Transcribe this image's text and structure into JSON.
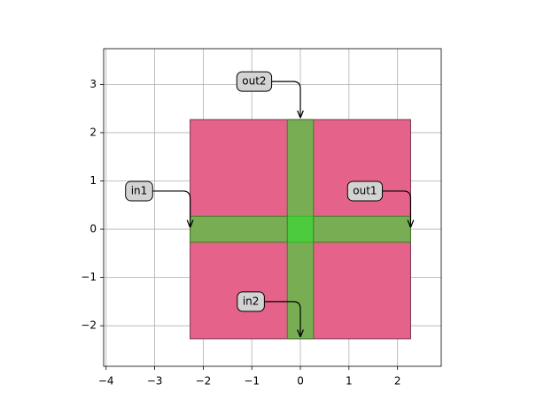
{
  "chart_data": {
    "type": "layout",
    "xlim": [
      -4.05,
      2.9
    ],
    "ylim": [
      -2.84,
      3.74
    ],
    "xticks": [
      {
        "value": -4,
        "label": "−4"
      },
      {
        "value": -3,
        "label": "−3"
      },
      {
        "value": -2,
        "label": "−2"
      },
      {
        "value": -1,
        "label": "−1"
      },
      0,
      1,
      2
    ],
    "yticks": [
      {
        "value": -2,
        "label": "−2"
      },
      {
        "value": -1,
        "label": "−1"
      },
      0,
      1,
      2,
      3
    ],
    "grid": true,
    "rects": [
      {
        "x": [
          -2.27,
          2.27
        ],
        "y": [
          -2.27,
          2.27
        ],
        "color": "#e5638a",
        "edge": "#7a3550"
      },
      {
        "x": [
          -2.27,
          2.27
        ],
        "y": [
          -0.27,
          0.27
        ],
        "color": "#2ee02e",
        "edge": "#3d7a2a"
      },
      {
        "x": [
          -0.27,
          0.27
        ],
        "y": [
          -2.27,
          2.27
        ],
        "color": "#2ee02e",
        "edge": "#3d7a2a"
      }
    ],
    "ports": [
      {
        "label": "in1",
        "x": -2.27,
        "y": 0,
        "text_x": -3.32,
        "text_y": 0.79
      },
      {
        "label": "out1",
        "x": 2.27,
        "y": 0,
        "text_x": 1.33,
        "text_y": 0.79
      },
      {
        "label": "out2",
        "x": 0,
        "y": 2.27,
        "text_x": -0.95,
        "text_y": 3.06
      },
      {
        "label": "in2",
        "x": 0,
        "y": -2.27,
        "text_x": -1.02,
        "text_y": -1.5
      }
    ]
  }
}
